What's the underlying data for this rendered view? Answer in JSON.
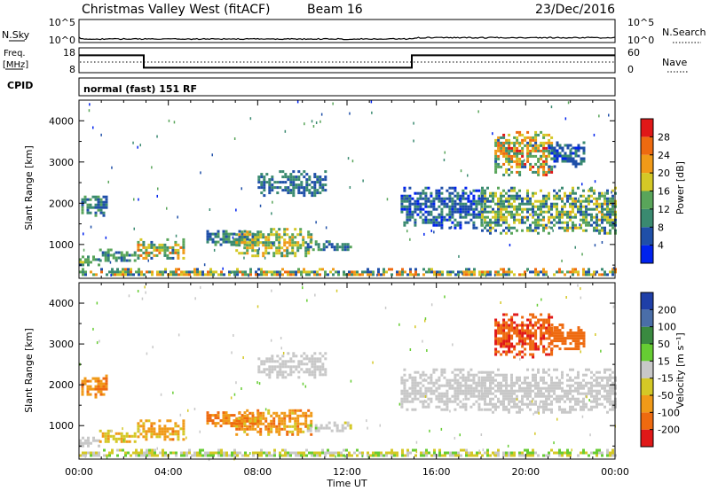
{
  "header": {
    "title": "Christmas Valley West (fitACF)",
    "beam": "Beam 16",
    "date": "23/Dec/2016"
  },
  "strips": {
    "nsky": {
      "left_label": "N.Sky",
      "right_label": "N.Search",
      "left_ticks": [
        "10^5",
        "10^0"
      ],
      "right_ticks": [
        "10^5",
        "10^0"
      ]
    },
    "freq": {
      "left_label_1": "Freq.",
      "left_label_2": "[MHz]",
      "right_label": "Nave",
      "left_ticks": [
        "18",
        "8"
      ],
      "right_ticks": [
        "60",
        "0"
      ]
    },
    "cpid": {
      "label": "CPID",
      "value": "normal (fast) 151 RF"
    }
  },
  "colors": {
    "power": [
      "#0022ee",
      "#1f4fa8",
      "#3a8a70",
      "#59a55a",
      "#d4c826",
      "#f09a18",
      "#ee6a10",
      "#e01818"
    ],
    "velocity": [
      "#e01818",
      "#ee6a10",
      "#f09a18",
      "#d4c826",
      "#c8c8c8",
      "#66cc33",
      "#3a8a40",
      "#4a6ea8",
      "#1f3fa8"
    ]
  },
  "chart_data": [
    {
      "type": "heatmap",
      "panel": "power",
      "xlabel": "",
      "ylabel": "Slant Range [km]",
      "x_ticks": [
        "00:00",
        "04:00",
        "08:00",
        "12:00",
        "16:00",
        "20:00",
        "00:00"
      ],
      "y_ticks": [
        1000,
        2000,
        3000,
        4000
      ],
      "ylim": [
        180,
        4500
      ],
      "colorbar": {
        "label": "Power [dB]",
        "ticks": [
          "4",
          "8",
          "12",
          "16",
          "20",
          "24",
          "28"
        ]
      },
      "regions": [
        {
          "x": [
            0.1,
            1.2
          ],
          "y": [
            1700,
            2250
          ],
          "v": [
            6,
            14
          ]
        },
        {
          "x": [
            0.0,
            0.9
          ],
          "y": [
            530,
            730
          ],
          "v": [
            8,
            18
          ]
        },
        {
          "x": [
            0.9,
            2.5
          ],
          "y": [
            600,
            900
          ],
          "v": [
            8,
            16
          ]
        },
        {
          "x": [
            2.6,
            4.7
          ],
          "y": [
            680,
            1150
          ],
          "v": [
            8,
            24
          ]
        },
        {
          "x": [
            5.7,
            8.0
          ],
          "y": [
            1000,
            1350
          ],
          "v": [
            6,
            14
          ]
        },
        {
          "x": [
            7.0,
            10.4
          ],
          "y": [
            750,
            1400
          ],
          "v": [
            10,
            22
          ]
        },
        {
          "x": [
            10.2,
            12.2
          ],
          "y": [
            850,
            1100
          ],
          "v": [
            6,
            14
          ]
        },
        {
          "x": [
            0.0,
            24.0
          ],
          "y": [
            250,
            430
          ],
          "v": [
            6,
            26
          ]
        },
        {
          "x": [
            14.4,
            18.0
          ],
          "y": [
            1400,
            2400
          ],
          "v": [
            4,
            12
          ]
        },
        {
          "x": [
            18.0,
            24.0
          ],
          "y": [
            1300,
            2400
          ],
          "v": [
            6,
            20
          ]
        },
        {
          "x": [
            18.6,
            21.2
          ],
          "y": [
            2700,
            3750
          ],
          "v": [
            8,
            28
          ]
        },
        {
          "x": [
            21.0,
            22.6
          ],
          "y": [
            2900,
            3500
          ],
          "v": [
            4,
            12
          ]
        },
        {
          "x": [
            8.0,
            11.0
          ],
          "y": [
            2200,
            2800
          ],
          "v": [
            6,
            12
          ]
        }
      ]
    },
    {
      "type": "heatmap",
      "panel": "velocity",
      "xlabel": "Time UT",
      "ylabel": "Slant Range [km]",
      "x_ticks": [
        "00:00",
        "04:00",
        "08:00",
        "12:00",
        "16:00",
        "20:00",
        "00:00"
      ],
      "y_ticks": [
        1000,
        2000,
        3000,
        4000
      ],
      "ylim": [
        180,
        4500
      ],
      "colorbar": {
        "label": "Velocity [m s⁻¹]",
        "ticks": [
          "200",
          "100",
          "50",
          "15",
          "-15",
          "-50",
          "-100",
          "-200"
        ]
      },
      "regions": [
        {
          "x": [
            0.1,
            1.2
          ],
          "y": [
            1700,
            2250
          ],
          "v": [
            -120,
            -60
          ]
        },
        {
          "x": [
            0.0,
            0.9
          ],
          "y": [
            530,
            730
          ],
          "v": [
            -15,
            0
          ]
        },
        {
          "x": [
            0.9,
            2.5
          ],
          "y": [
            600,
            900
          ],
          "v": [
            -60,
            -20
          ]
        },
        {
          "x": [
            2.6,
            4.7
          ],
          "y": [
            680,
            1150
          ],
          "v": [
            -110,
            -30
          ]
        },
        {
          "x": [
            5.7,
            8.0
          ],
          "y": [
            1000,
            1350
          ],
          "v": [
            -150,
            -60
          ]
        },
        {
          "x": [
            7.0,
            10.4
          ],
          "y": [
            750,
            1400
          ],
          "v": [
            -120,
            -40
          ]
        },
        {
          "x": [
            10.2,
            12.2
          ],
          "y": [
            850,
            1100
          ],
          "v": [
            -20,
            20
          ]
        },
        {
          "x": [
            0.0,
            24.0
          ],
          "y": [
            250,
            430
          ],
          "v": [
            -50,
            40
          ]
        },
        {
          "x": [
            14.4,
            18.0
          ],
          "y": [
            1400,
            2400
          ],
          "v": [
            -10,
            10
          ]
        },
        {
          "x": [
            18.0,
            24.0
          ],
          "y": [
            1300,
            2400
          ],
          "v": [
            -12,
            12
          ]
        },
        {
          "x": [
            18.6,
            21.2
          ],
          "y": [
            2700,
            3750
          ],
          "v": [
            -220,
            -160
          ]
        },
        {
          "x": [
            21.0,
            22.6
          ],
          "y": [
            2900,
            3500
          ],
          "v": [
            -200,
            -150
          ]
        },
        {
          "x": [
            8.0,
            11.0
          ],
          "y": [
            2200,
            2800
          ],
          "v": [
            -10,
            10
          ]
        }
      ]
    },
    {
      "type": "line",
      "panel": "frequency",
      "series": [
        {
          "x": [
            0,
            2.9,
            2.9,
            14.9,
            14.9,
            24
          ],
          "y": [
            15,
            15,
            10,
            10,
            15,
            15
          ]
        }
      ],
      "ylim": [
        8,
        18
      ]
    }
  ]
}
